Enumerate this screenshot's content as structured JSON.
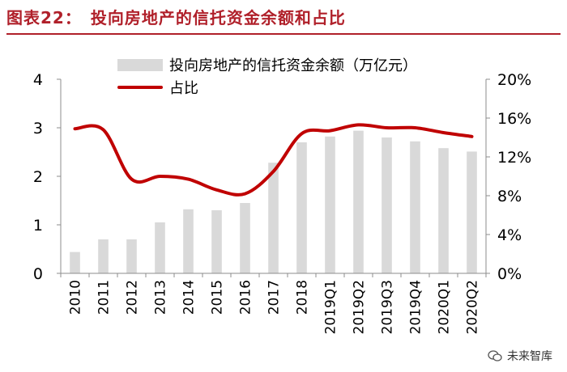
{
  "title": "图表22：　投向房地产的信托资金余额和占比",
  "watermark": "未来智库",
  "chart_data": {
    "type": "bar+line",
    "categories": [
      "2010",
      "2011",
      "2012",
      "2013",
      "2014",
      "2015",
      "2016",
      "2017",
      "2018",
      "2019Q1",
      "2019Q2",
      "2019Q3",
      "2019Q4",
      "2020Q1",
      "2020Q2"
    ],
    "series": [
      {
        "name": "投向房地产的信托资金余额（万亿元）",
        "type": "bar",
        "axis": "left",
        "values": [
          0.44,
          0.7,
          0.7,
          1.05,
          1.32,
          1.3,
          1.45,
          2.28,
          2.7,
          2.82,
          2.94,
          2.8,
          2.72,
          2.58,
          2.51
        ]
      },
      {
        "name": "占比",
        "type": "line",
        "axis": "right",
        "values": [
          14.9,
          14.8,
          9.7,
          10.0,
          9.7,
          8.6,
          8.2,
          10.5,
          14.4,
          14.7,
          15.3,
          15.0,
          15.0,
          14.5,
          14.1
        ]
      }
    ],
    "left_axis": {
      "min": 0,
      "max": 4,
      "ticks": [
        "0",
        "1",
        "2",
        "3",
        "4"
      ]
    },
    "right_axis": {
      "min": 0,
      "max": 20,
      "ticks": [
        "0%",
        "4%",
        "8%",
        "12%",
        "16%",
        "20%"
      ]
    },
    "colors": {
      "bar": "#d9d9d9",
      "line": "#c00000"
    }
  }
}
